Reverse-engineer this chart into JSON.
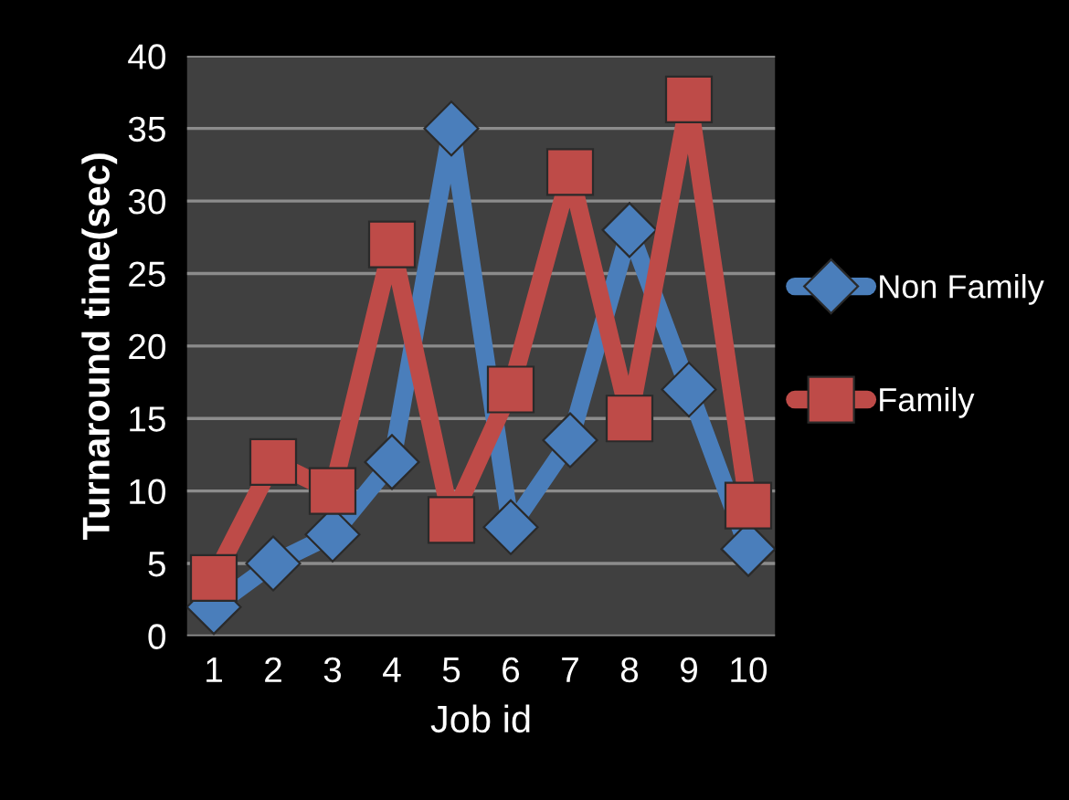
{
  "chart_data": {
    "type": "line",
    "xlabel": "Job id",
    "ylabel": "Turnaround time(sec)",
    "categories": [
      "1",
      "2",
      "3",
      "4",
      "5",
      "6",
      "7",
      "8",
      "9",
      "10"
    ],
    "series": [
      {
        "name": "Non Family",
        "color": "#4a7ebb",
        "marker": "diamond",
        "values": [
          2,
          5,
          7,
          12,
          35,
          7.5,
          13.5,
          28,
          17,
          6
        ]
      },
      {
        "name": "Family",
        "color": "#be4b48",
        "marker": "square",
        "values": [
          4,
          12,
          10,
          27,
          8,
          17,
          32,
          15,
          37,
          9
        ]
      }
    ],
    "ylim": [
      0,
      40
    ],
    "yticks": [
      0,
      5,
      10,
      15,
      20,
      25,
      30,
      35,
      40
    ],
    "grid": "y",
    "legend": "right"
  }
}
